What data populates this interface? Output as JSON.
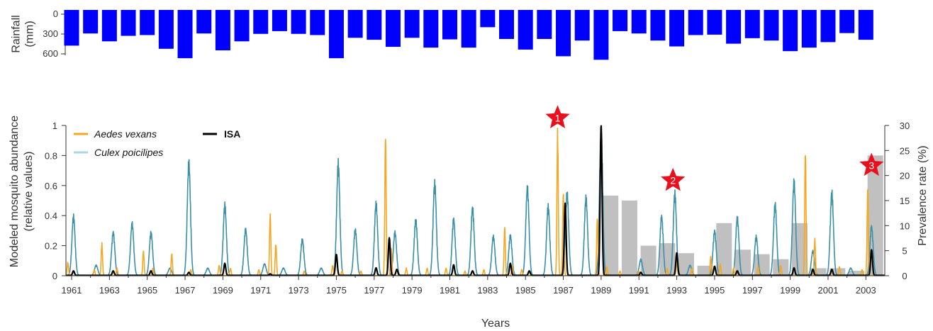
{
  "chart_data": [
    {
      "type": "bar",
      "panel": "rainfall",
      "ylabel": "Rainfall\n(mm)",
      "ylim": [
        0,
        650
      ],
      "yticks": [
        "0",
        "300",
        "600"
      ],
      "inverted_axis": true,
      "bar_color": "#0000ff",
      "years": [
        1961,
        1962,
        1963,
        1964,
        1965,
        1966,
        1967,
        1968,
        1969,
        1970,
        1971,
        1972,
        1973,
        1974,
        1975,
        1976,
        1977,
        1978,
        1979,
        1980,
        1981,
        1982,
        1983,
        1984,
        1985,
        1986,
        1987,
        1988,
        1989,
        1990,
        1991,
        1992,
        1993,
        1994,
        1995,
        1996,
        1997,
        1998,
        1999,
        2000,
        2001,
        2002,
        2003
      ],
      "values": [
        455,
        300,
        400,
        330,
        320,
        495,
        615,
        300,
        515,
        400,
        305,
        270,
        305,
        320,
        615,
        355,
        380,
        470,
        355,
        480,
        375,
        480,
        220,
        370,
        505,
        370,
        590,
        390,
        635,
        270,
        300,
        390,
        465,
        320,
        315,
        430,
        360,
        390,
        525,
        480,
        410,
        295,
        380
      ]
    },
    {
      "type": "line",
      "panel": "abundance",
      "xlabel": "Years",
      "ylabel": "Modeled mosquito abundance\n(relative values)",
      "y2label": "Prevalence rate (%)",
      "xlim": [
        1960.7,
        2004.0
      ],
      "ylim": [
        0,
        1
      ],
      "y2lim": [
        0,
        30
      ],
      "xticks": [
        "1961",
        "1963",
        "1965",
        "1967",
        "1969",
        "1971",
        "1973",
        "1975",
        "1977",
        "1979",
        "1981",
        "1983",
        "1985",
        "1987",
        "1989",
        "1991",
        "1993",
        "1995",
        "1997",
        "1999",
        "2001",
        "2003"
      ],
      "yticks": [
        "0",
        "0.2",
        "0.4",
        "0.6",
        "0.8",
        "1"
      ],
      "y2ticks": [
        "0",
        "5",
        "10",
        "15",
        "20",
        "25",
        "30"
      ],
      "legend": [
        {
          "label": "Aedes vexans",
          "color": "#f5a623",
          "style": "italic"
        },
        {
          "label": "Culex poicilipes",
          "color": "#a6d8e6",
          "style": "italic"
        },
        {
          "label": "ISA",
          "color": "#000000",
          "style": "bold"
        }
      ],
      "series": [
        {
          "name": "Culex poicilipes",
          "color": "#3a8fa8",
          "peaks": [
            [
              1961.1,
              0.41
            ],
            [
              1962.3,
              0.07
            ],
            [
              1963.2,
              0.3
            ],
            [
              1964.2,
              0.36
            ],
            [
              1965.2,
              0.3
            ],
            [
              1966.2,
              0.05
            ],
            [
              1967.2,
              0.78
            ],
            [
              1968.2,
              0.05
            ],
            [
              1969.1,
              0.49
            ],
            [
              1970.2,
              0.32
            ],
            [
              1971.2,
              0.08
            ],
            [
              1972.2,
              0.05
            ],
            [
              1973.2,
              0.25
            ],
            [
              1974.2,
              0.05
            ],
            [
              1975.1,
              0.78
            ],
            [
              1976.0,
              0.32
            ],
            [
              1977.1,
              0.5
            ],
            [
              1978.1,
              0.3
            ],
            [
              1979.2,
              0.39
            ],
            [
              1980.2,
              0.64
            ],
            [
              1981.2,
              0.39
            ],
            [
              1982.2,
              0.47
            ],
            [
              1983.3,
              0.27
            ],
            [
              1984.2,
              0.28
            ],
            [
              1985.1,
              0.61
            ],
            [
              1986.2,
              0.48
            ],
            [
              1987.2,
              0.58
            ],
            [
              1988.2,
              0.54
            ],
            [
              1989.0,
              1.0
            ],
            [
              1991.1,
              0.11
            ],
            [
              1992.2,
              0.41
            ],
            [
              1992.9,
              0.57
            ],
            [
              1993.7,
              0.07
            ],
            [
              1995.0,
              0.31
            ],
            [
              1996.2,
              0.4
            ],
            [
              1997.2,
              0.27
            ],
            [
              1998.2,
              0.5
            ],
            [
              1999.2,
              0.65
            ],
            [
              2000.2,
              0.17
            ],
            [
              2001.2,
              0.58
            ],
            [
              2002.2,
              0.05
            ],
            [
              2003.3,
              0.34
            ]
          ]
        },
        {
          "name": "Aedes vexans",
          "color": "#f5a623",
          "peaks": [
            [
              1960.8,
              0.09
            ],
            [
              1962.2,
              0.04
            ],
            [
              1962.6,
              0.22
            ],
            [
              1963.4,
              0.05
            ],
            [
              1964.8,
              0.17
            ],
            [
              1965.3,
              0.05
            ],
            [
              1966.3,
              0.15
            ],
            [
              1967.3,
              0.04
            ],
            [
              1968.8,
              0.07
            ],
            [
              1969.4,
              0.05
            ],
            [
              1970.9,
              0.04
            ],
            [
              1971.5,
              0.42
            ],
            [
              1971.8,
              0.22
            ],
            [
              1973.3,
              0.03
            ],
            [
              1974.8,
              0.07
            ],
            [
              1975.3,
              0.03
            ],
            [
              1976.3,
              0.03
            ],
            [
              1977.6,
              0.97
            ],
            [
              1977.9,
              0.19
            ],
            [
              1978.7,
              0.05
            ],
            [
              1979.8,
              0.05
            ],
            [
              1980.8,
              0.05
            ],
            [
              1981.8,
              0.03
            ],
            [
              1982.8,
              0.04
            ],
            [
              1983.9,
              0.33
            ],
            [
              1984.3,
              0.07
            ],
            [
              1984.8,
              0.04
            ],
            [
              1986.7,
              1.0
            ],
            [
              1987.0,
              0.57
            ],
            [
              1988.8,
              0.4
            ],
            [
              1989.3,
              0.06
            ],
            [
              1990.0,
              0.03
            ],
            [
              1991.0,
              0.03
            ],
            [
              1992.5,
              0.05
            ],
            [
              1993.0,
              0.1
            ],
            [
              1993.8,
              0.05
            ],
            [
              1994.8,
              0.13
            ],
            [
              1995.3,
              0.08
            ],
            [
              1996.0,
              0.05
            ],
            [
              1997.3,
              0.06
            ],
            [
              1998.5,
              0.07
            ],
            [
              1999.8,
              0.86
            ],
            [
              2000.3,
              0.25
            ],
            [
              2001.6,
              0.06
            ],
            [
              2002.8,
              0.04
            ],
            [
              2003.1,
              0.6
            ]
          ]
        },
        {
          "name": "ISA",
          "color": "#000000",
          "peaks": [
            [
              1961.1,
              0.03
            ],
            [
              1963.2,
              0.03
            ],
            [
              1965.2,
              0.03
            ],
            [
              1967.2,
              0.02
            ],
            [
              1969.1,
              0.08
            ],
            [
              1971.5,
              0.01
            ],
            [
              1975.0,
              0.14
            ],
            [
              1977.1,
              0.05
            ],
            [
              1977.8,
              0.25
            ],
            [
              1978.2,
              0.04
            ],
            [
              1981.2,
              0.07
            ],
            [
              1982.2,
              0.03
            ],
            [
              1984.2,
              0.08
            ],
            [
              1985.2,
              0.03
            ],
            [
              1987.1,
              0.48
            ],
            [
              1989.0,
              1.0
            ],
            [
              1991.1,
              0.02
            ],
            [
              1993.0,
              0.15
            ],
            [
              1995.0,
              0.06
            ],
            [
              1996.2,
              0.03
            ],
            [
              1999.2,
              0.05
            ],
            [
              2000.2,
              0.04
            ],
            [
              2001.2,
              0.04
            ],
            [
              2003.3,
              0.17
            ]
          ]
        }
      ],
      "prevalence_bars": {
        "color": "#c0c0c0",
        "years": [
          1989,
          1990,
          1991,
          1992,
          1993,
          1994,
          1995,
          1996,
          1997,
          1998,
          1999,
          2000,
          2001,
          2002,
          2003
        ],
        "values": [
          16.0,
          15.0,
          6.0,
          6.5,
          4.5,
          2.0,
          10.5,
          5.2,
          4.3,
          3.3,
          10.5,
          1.5,
          1.5,
          1.0,
          24.0
        ]
      },
      "stars": [
        {
          "label": "1",
          "x": 1986.7,
          "y2": 31.5
        },
        {
          "label": "2",
          "x": 1992.8,
          "y2": 19.0
        },
        {
          "label": "3",
          "x": 2003.3,
          "y2": 22.0
        }
      ]
    }
  ]
}
